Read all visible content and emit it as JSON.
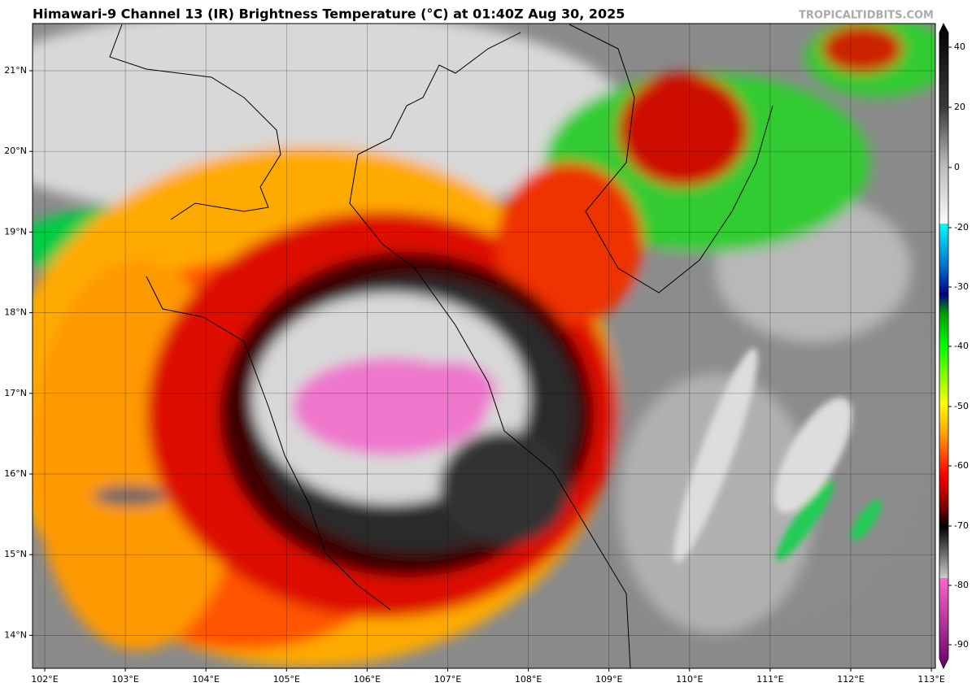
{
  "header": {
    "title": "Himawari-9 Channel 13 (IR) Brightness Temperature (°C) at 01:40Z Aug 30, 2025",
    "credit": "TROPICALTIDBITS.COM"
  },
  "map": {
    "lon_labels": [
      "102°E",
      "103°E",
      "104°E",
      "105°E",
      "106°E",
      "107°E",
      "108°E",
      "109°E",
      "110°E",
      "111°E",
      "112°E",
      "113°E"
    ],
    "lat_labels": [
      "21°N",
      "20°N",
      "19°N",
      "18°N",
      "17°N",
      "16°N",
      "15°N",
      "14°N"
    ]
  },
  "colorbar": {
    "ticks": [
      40,
      20,
      0,
      -20,
      -30,
      -40,
      -50,
      -60,
      -70,
      -80,
      -90
    ]
  }
}
